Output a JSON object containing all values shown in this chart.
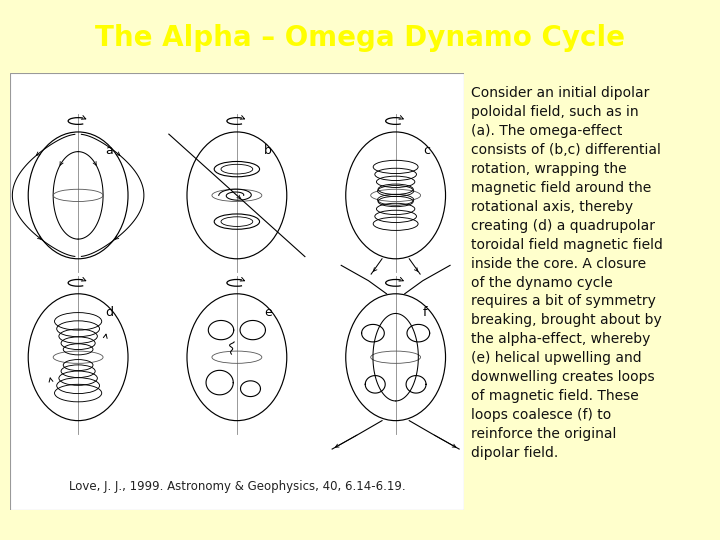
{
  "bg_color": "#ffffcc",
  "title_text": "The Alpha – Omega Dynamo Cycle",
  "title_bg_color": "#1a3a6e",
  "title_text_color": "#ffff00",
  "title_fontsize": 20,
  "description_text": "Consider an initial dipolar\npoloidal field, such as in\n(a). The omega-effect\nconsists of (b,c) differential\nrotation, wrapping the\nmagnetic field around the\nrotational axis, thereby\ncreating (d) a quadrupolar\ntoroidal field magnetic field\ninside the core. A closure\nof the dynamo cycle\nrequires a bit of symmetry\nbreaking, brought about by\nthe alpha-effect, whereby\n(e) helical upwelling and\ndownwelling creates loops\nof magnetic field. These\nloops coalesce (f) to\nreinforce the original\ndipolar field.",
  "description_fontsize": 10,
  "caption_text": "Love, J. J., 1999. Astronomy & Geophysics, 40, 6.14-6.19.",
  "caption_fontsize": 8.5
}
